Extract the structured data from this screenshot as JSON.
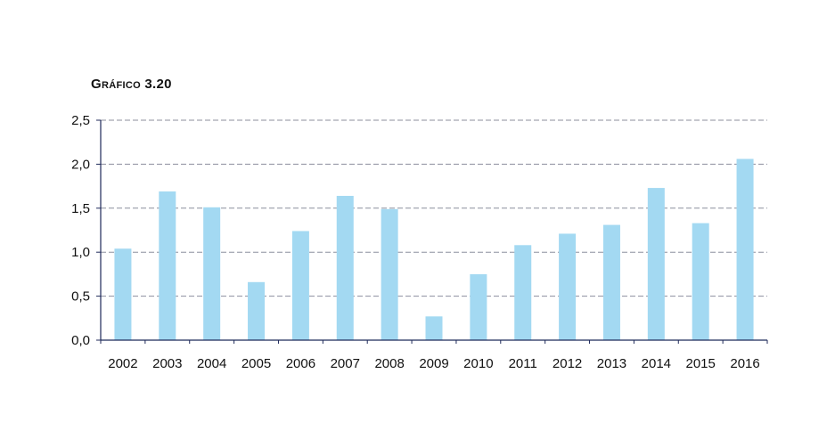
{
  "chart_data": {
    "type": "bar",
    "title": "Gráfico 3.20",
    "xlabel": "",
    "ylabel": "",
    "categories": [
      "2002",
      "2003",
      "2004",
      "2005",
      "2006",
      "2007",
      "2008",
      "2009",
      "2010",
      "2011",
      "2012",
      "2013",
      "2014",
      "2015",
      "2016"
    ],
    "values": [
      1.04,
      1.69,
      1.51,
      0.66,
      1.24,
      1.64,
      1.49,
      0.27,
      0.75,
      1.08,
      1.21,
      1.31,
      1.73,
      1.33,
      2.06
    ],
    "ylim": [
      0,
      2.5
    ],
    "yticks": [
      "0,0",
      "0,5",
      "1,0",
      "1,5",
      "2,0",
      "2,5"
    ],
    "grid": true,
    "colors": {
      "bar": "#a3d9f2",
      "axis": "#1f2a5a",
      "grid": "#8c8f9e"
    }
  }
}
